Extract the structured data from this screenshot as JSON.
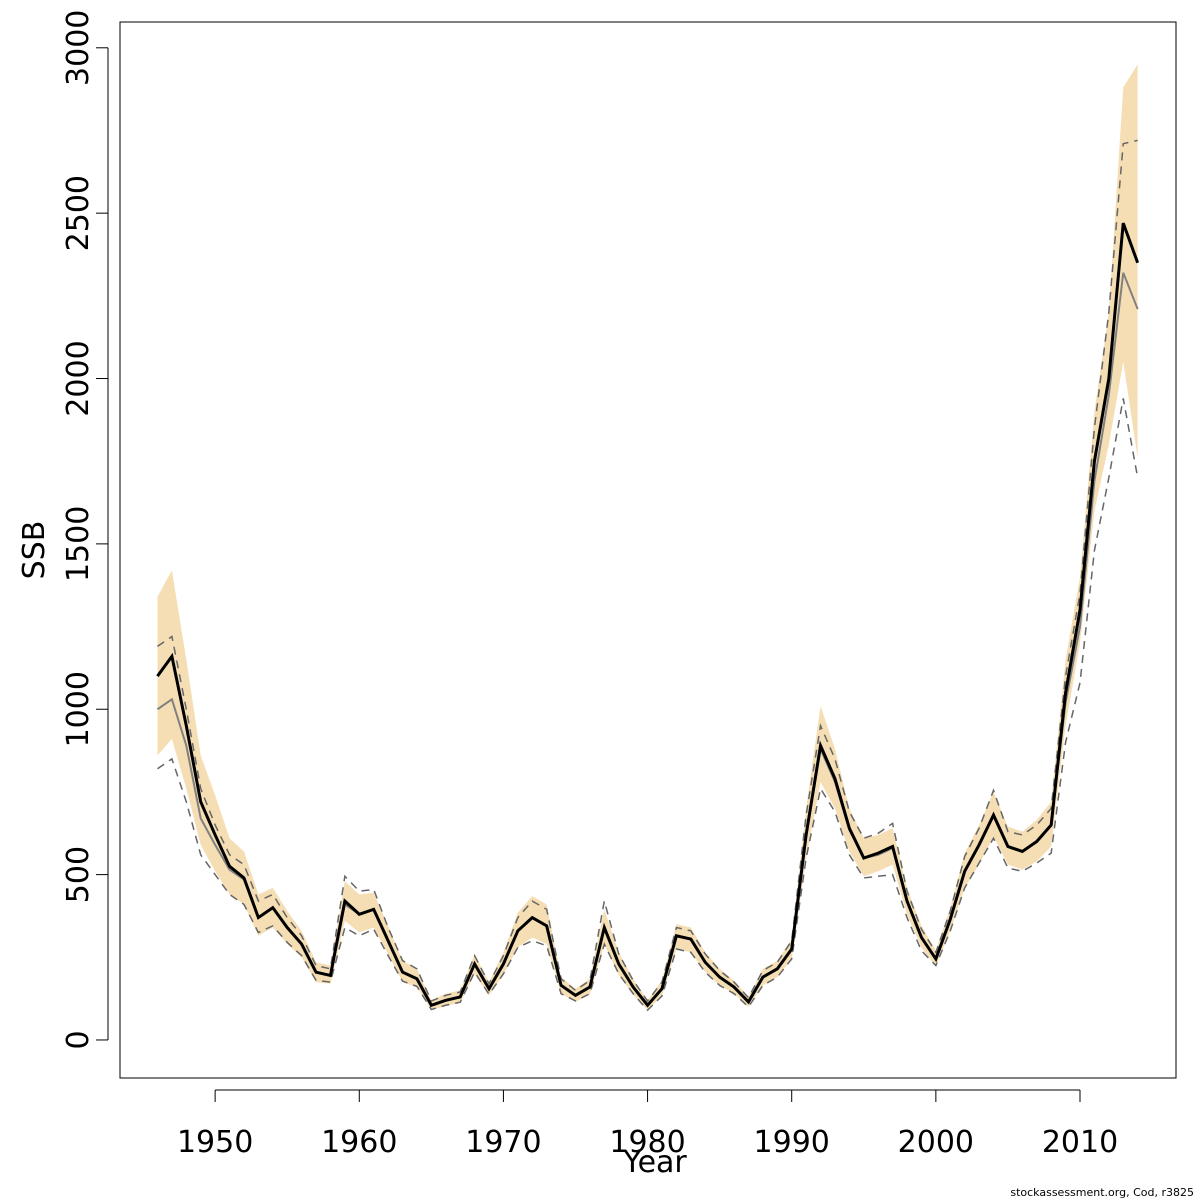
{
  "chart_data": {
    "type": "line",
    "x_label": "Year",
    "y_label": "SSB",
    "footer": "stockassessment.org, Cod, r3825",
    "x": [
      1946,
      1947,
      1948,
      1949,
      1950,
      1951,
      1952,
      1953,
      1954,
      1955,
      1956,
      1957,
      1958,
      1959,
      1960,
      1961,
      1962,
      1963,
      1964,
      1965,
      1966,
      1967,
      1968,
      1969,
      1970,
      1971,
      1972,
      1973,
      1974,
      1975,
      1976,
      1977,
      1978,
      1979,
      1980,
      1981,
      1982,
      1983,
      1984,
      1985,
      1986,
      1987,
      1988,
      1989,
      1990,
      1991,
      1992,
      1993,
      1994,
      1995,
      1996,
      1997,
      1998,
      1999,
      2000,
      2001,
      2002,
      2003,
      2004,
      2005,
      2006,
      2007,
      2008,
      2009,
      2010,
      2011,
      2012,
      2013,
      2014
    ],
    "series": [
      {
        "color": "#000000",
        "values": [
          1100,
          1160,
          950,
          720,
          620,
          525,
          490,
          370,
          400,
          340,
          290,
          205,
          195,
          420,
          380,
          395,
          300,
          205,
          185,
          105,
          120,
          130,
          230,
          155,
          230,
          330,
          370,
          345,
          165,
          135,
          160,
          340,
          230,
          160,
          105,
          155,
          315,
          305,
          235,
          190,
          160,
          115,
          190,
          215,
          275,
          620,
          890,
          790,
          640,
          550,
          565,
          585,
          420,
          310,
          245,
          365,
          510,
          590,
          680,
          585,
          570,
          600,
          650,
          1050,
          1300,
          1750,
          2000,
          2470,
          2350
        ]
      },
      {
        "color": "#808080",
        "values": [
          1000,
          1030,
          890,
          670,
          590,
          515,
          485,
          370,
          400,
          340,
          290,
          205,
          195,
          410,
          380,
          395,
          300,
          205,
          185,
          105,
          120,
          130,
          230,
          155,
          230,
          330,
          370,
          345,
          165,
          135,
          160,
          340,
          230,
          160,
          105,
          155,
          315,
          305,
          235,
          190,
          160,
          115,
          190,
          215,
          275,
          620,
          880,
          780,
          635,
          550,
          560,
          580,
          420,
          310,
          245,
          365,
          510,
          590,
          680,
          585,
          570,
          600,
          650,
          1020,
          1250,
          1690,
          1950,
          2320,
          2210
        ]
      }
    ],
    "band": {
      "color": "#f5deb3",
      "upper": [
        1340,
        1420,
        1150,
        860,
        740,
        610,
        570,
        440,
        460,
        390,
        330,
        235,
        225,
        480,
        440,
        445,
        345,
        240,
        215,
        120,
        140,
        150,
        260,
        175,
        265,
        385,
        435,
        410,
        190,
        155,
        185,
        395,
        265,
        185,
        120,
        180,
        350,
        340,
        265,
        215,
        180,
        130,
        215,
        240,
        305,
        700,
        1010,
        880,
        700,
        610,
        620,
        640,
        460,
        345,
        270,
        400,
        565,
        650,
        750,
        645,
        630,
        665,
        720,
        1150,
        1400,
        1900,
        2200,
        2880,
        2950
      ],
      "lower": [
        860,
        910,
        760,
        590,
        510,
        440,
        410,
        315,
        340,
        290,
        250,
        175,
        170,
        360,
        325,
        340,
        260,
        175,
        160,
        90,
        103,
        112,
        200,
        135,
        198,
        280,
        310,
        290,
        140,
        115,
        137,
        290,
        197,
        137,
        90,
        133,
        275,
        265,
        205,
        165,
        140,
        100,
        165,
        190,
        245,
        550,
        780,
        700,
        570,
        495,
        510,
        530,
        380,
        280,
        222,
        330,
        460,
        530,
        615,
        530,
        515,
        540,
        585,
        950,
        1200,
        1600,
        1800,
        2050,
        1760
      ]
    },
    "dashed": {
      "color": "#666666",
      "upper": [
        1190,
        1220,
        1000,
        760,
        650,
        560,
        530,
        420,
        440,
        370,
        315,
        225,
        215,
        495,
        450,
        455,
        340,
        240,
        215,
        118,
        135,
        145,
        255,
        170,
        255,
        370,
        420,
        395,
        185,
        150,
        180,
        420,
        260,
        180,
        118,
        175,
        340,
        330,
        260,
        210,
        175,
        128,
        210,
        235,
        300,
        680,
        950,
        850,
        690,
        610,
        625,
        655,
        450,
        335,
        265,
        390,
        555,
        640,
        755,
        630,
        620,
        650,
        700,
        1100,
        1350,
        1850,
        2200,
        2710,
        2720
      ],
      "lower": [
        820,
        850,
        720,
        560,
        500,
        440,
        410,
        325,
        345,
        295,
        255,
        180,
        175,
        340,
        315,
        335,
        255,
        178,
        162,
        92,
        105,
        114,
        205,
        138,
        200,
        280,
        300,
        285,
        140,
        118,
        140,
        290,
        200,
        140,
        90,
        133,
        275,
        265,
        205,
        165,
        140,
        100,
        165,
        190,
        245,
        550,
        760,
        690,
        560,
        490,
        495,
        500,
        370,
        270,
        225,
        330,
        460,
        535,
        610,
        520,
        510,
        535,
        565,
        900,
        1080,
        1480,
        1700,
        1940,
        1700
      ]
    },
    "xlim": [
      1943.4,
      2016.66
    ],
    "ylim": [
      -115,
      3078
    ],
    "xticks": [
      1950,
      1960,
      1970,
      1980,
      1990,
      2000,
      2010
    ],
    "yticks": [
      0,
      500,
      1000,
      1500,
      2000,
      2500,
      3000
    ]
  }
}
